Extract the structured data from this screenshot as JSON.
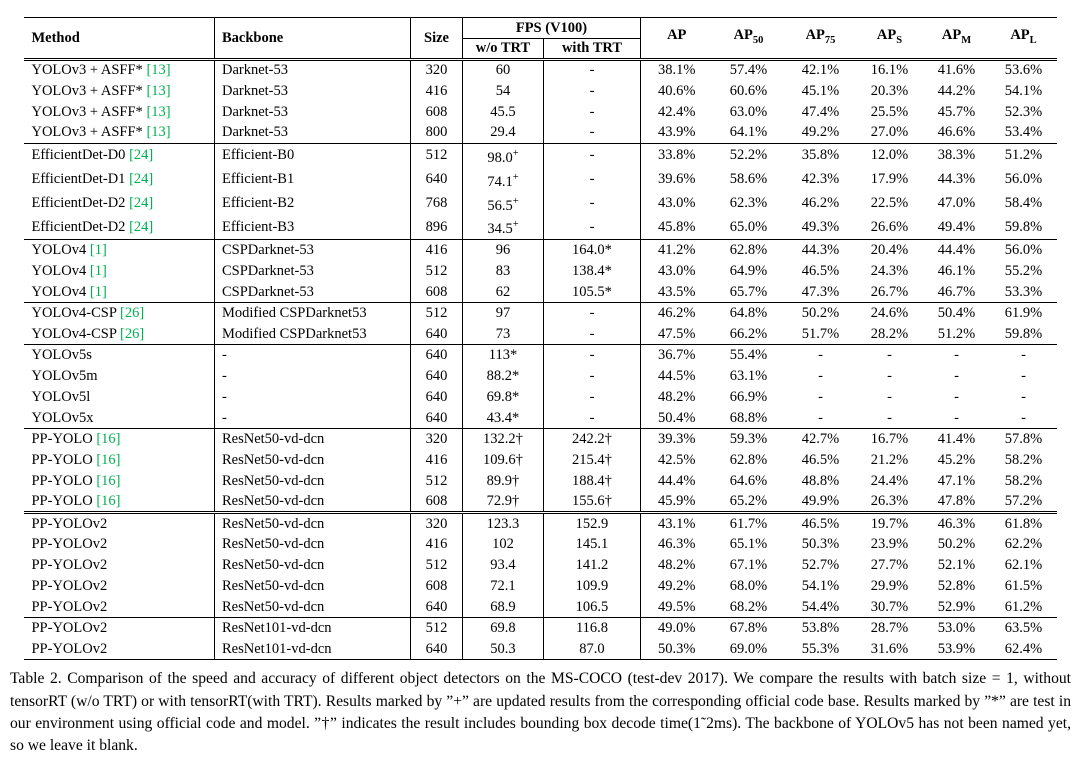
{
  "colors": {
    "cite_green": "#00b050",
    "text": "#000000",
    "rule": "#000000"
  },
  "table": {
    "header": {
      "method": "Method",
      "backbone": "Backbone",
      "size": "Size",
      "fps_group": "FPS (V100)",
      "fps_wo": "w/o TRT",
      "fps_with": "with TRT",
      "ap_columns": [
        {
          "main": "AP",
          "sub": ""
        },
        {
          "main": "AP",
          "sub": "50"
        },
        {
          "main": "AP",
          "sub": "75"
        },
        {
          "main": "AP",
          "sub": "S"
        },
        {
          "main": "AP",
          "sub": "M"
        },
        {
          "main": "AP",
          "sub": "L"
        }
      ]
    },
    "groups": [
      {
        "bottom_rule": "single",
        "rows": [
          {
            "method": "YOLOv3 + ASFF*",
            "cite": "[13]",
            "backbone": "Darknet-53",
            "size": "320",
            "fps_wo": "60",
            "fps_with": "-",
            "ap": [
              "38.1%",
              "57.4%",
              "42.1%",
              "16.1%",
              "41.6%",
              "53.6%"
            ]
          },
          {
            "method": "YOLOv3 + ASFF*",
            "cite": "[13]",
            "backbone": "Darknet-53",
            "size": "416",
            "fps_wo": "54",
            "fps_with": "-",
            "ap": [
              "40.6%",
              "60.6%",
              "45.1%",
              "20.3%",
              "44.2%",
              "54.1%"
            ]
          },
          {
            "method": "YOLOv3 + ASFF*",
            "cite": "[13]",
            "backbone": "Darknet-53",
            "size": "608",
            "fps_wo": "45.5",
            "fps_with": "-",
            "ap": [
              "42.4%",
              "63.0%",
              "47.4%",
              "25.5%",
              "45.7%",
              "52.3%"
            ]
          },
          {
            "method": "YOLOv3 + ASFF*",
            "cite": "[13]",
            "backbone": "Darknet-53",
            "size": "800",
            "fps_wo": "29.4",
            "fps_with": "-",
            "ap": [
              "43.9%",
              "64.1%",
              "49.2%",
              "27.0%",
              "46.6%",
              "53.4%"
            ]
          }
        ]
      },
      {
        "bottom_rule": "single",
        "rows": [
          {
            "method": "EfficientDet-D0",
            "cite": "[24]",
            "backbone": "Efficient-B0",
            "size": "512",
            "fps_wo": "98.0",
            "fps_wo_sup": "+",
            "fps_with": "-",
            "ap": [
              "33.8%",
              "52.2%",
              "35.8%",
              "12.0%",
              "38.3%",
              "51.2%"
            ]
          },
          {
            "method": "EfficientDet-D1",
            "cite": "[24]",
            "backbone": "Efficient-B1",
            "size": "640",
            "fps_wo": "74.1",
            "fps_wo_sup": "+",
            "fps_with": "-",
            "ap": [
              "39.6%",
              "58.6%",
              "42.3%",
              "17.9%",
              "44.3%",
              "56.0%"
            ]
          },
          {
            "method": "EfficientDet-D2",
            "cite": "[24]",
            "backbone": "Efficient-B2",
            "size": "768",
            "fps_wo": "56.5",
            "fps_wo_sup": "+",
            "fps_with": "-",
            "ap": [
              "43.0%",
              "62.3%",
              "46.2%",
              "22.5%",
              "47.0%",
              "58.4%"
            ]
          },
          {
            "method": "EfficientDet-D2",
            "cite": "[24]",
            "backbone": "Efficient-B3",
            "size": "896",
            "fps_wo": "34.5",
            "fps_wo_sup": "+",
            "fps_with": "-",
            "ap": [
              "45.8%",
              "65.0%",
              "49.3%",
              "26.6%",
              "49.4%",
              "59.8%"
            ]
          }
        ]
      },
      {
        "bottom_rule": "single",
        "rows": [
          {
            "method": "YOLOv4",
            "cite": "[1]",
            "backbone": "CSPDarknet-53",
            "size": "416",
            "fps_wo": "96",
            "fps_with": "164.0*",
            "ap": [
              "41.2%",
              "62.8%",
              "44.3%",
              "20.4%",
              "44.4%",
              "56.0%"
            ]
          },
          {
            "method": "YOLOv4",
            "cite": "[1]",
            "backbone": "CSPDarknet-53",
            "size": "512",
            "fps_wo": "83",
            "fps_with": "138.4*",
            "ap": [
              "43.0%",
              "64.9%",
              "46.5%",
              "24.3%",
              "46.1%",
              "55.2%"
            ]
          },
          {
            "method": "YOLOv4",
            "cite": "[1]",
            "backbone": "CSPDarknet-53",
            "size": "608",
            "fps_wo": "62",
            "fps_with": "105.5*",
            "ap": [
              "43.5%",
              "65.7%",
              "47.3%",
              "26.7%",
              "46.7%",
              "53.3%"
            ]
          }
        ]
      },
      {
        "bottom_rule": "single",
        "rows": [
          {
            "method": "YOLOv4-CSP",
            "cite": "[26]",
            "backbone": "Modified CSPDarknet53",
            "size": "512",
            "fps_wo": "97",
            "fps_with": "-",
            "ap": [
              "46.2%",
              "64.8%",
              "50.2%",
              "24.6%",
              "50.4%",
              "61.9%"
            ]
          },
          {
            "method": "YOLOv4-CSP",
            "cite": "[26]",
            "backbone": "Modified CSPDarknet53",
            "size": "640",
            "fps_wo": "73",
            "fps_with": "-",
            "ap": [
              "47.5%",
              "66.2%",
              "51.7%",
              "28.2%",
              "51.2%",
              "59.8%"
            ]
          }
        ]
      },
      {
        "bottom_rule": "single",
        "rows": [
          {
            "method": "YOLOv5s",
            "cite": "",
            "backbone": "-",
            "size": "640",
            "fps_wo": "113*",
            "fps_with": "-",
            "ap": [
              "36.7%",
              "55.4%",
              "-",
              "-",
              "-",
              "-"
            ]
          },
          {
            "method": "YOLOv5m",
            "cite": "",
            "backbone": "-",
            "size": "640",
            "fps_wo": "88.2*",
            "fps_with": "-",
            "ap": [
              "44.5%",
              "63.1%",
              "-",
              "-",
              "-",
              "-"
            ]
          },
          {
            "method": "YOLOv5l",
            "cite": "",
            "backbone": "-",
            "size": "640",
            "fps_wo": "69.8*",
            "fps_with": "-",
            "ap": [
              "48.2%",
              "66.9%",
              "-",
              "-",
              "-",
              "-"
            ]
          },
          {
            "method": "YOLOv5x",
            "cite": "",
            "backbone": "-",
            "size": "640",
            "fps_wo": "43.4*",
            "fps_with": "-",
            "ap": [
              "50.4%",
              "68.8%",
              "-",
              "-",
              "-",
              "-"
            ]
          }
        ]
      },
      {
        "bottom_rule": "double",
        "rows": [
          {
            "method": "PP-YOLO",
            "cite": "[16]",
            "backbone": "ResNet50-vd-dcn",
            "size": "320",
            "fps_wo": "132.2†",
            "fps_with": "242.2†",
            "ap": [
              "39.3%",
              "59.3%",
              "42.7%",
              "16.7%",
              "41.4%",
              "57.8%"
            ]
          },
          {
            "method": "PP-YOLO",
            "cite": "[16]",
            "backbone": "ResNet50-vd-dcn",
            "size": "416",
            "fps_wo": "109.6†",
            "fps_with": "215.4†",
            "ap": [
              "42.5%",
              "62.8%",
              "46.5%",
              "21.2%",
              "45.2%",
              "58.2%"
            ]
          },
          {
            "method": "PP-YOLO",
            "cite": "[16]",
            "backbone": "ResNet50-vd-dcn",
            "size": "512",
            "fps_wo": "89.9†",
            "fps_with": "188.4†",
            "ap": [
              "44.4%",
              "64.6%",
              "48.8%",
              "24.4%",
              "47.1%",
              "58.2%"
            ]
          },
          {
            "method": "PP-YOLO",
            "cite": "[16]",
            "backbone": "ResNet50-vd-dcn",
            "size": "608",
            "fps_wo": "72.9†",
            "fps_with": "155.6†",
            "ap": [
              "45.9%",
              "65.2%",
              "49.9%",
              "26.3%",
              "47.8%",
              "57.2%"
            ]
          }
        ]
      },
      {
        "bottom_rule": "single",
        "rows": [
          {
            "method": "PP-YOLOv2",
            "cite": "",
            "backbone": "ResNet50-vd-dcn",
            "size": "320",
            "fps_wo": "123.3",
            "fps_with": "152.9",
            "ap": [
              "43.1%",
              "61.7%",
              "46.5%",
              "19.7%",
              "46.3%",
              "61.8%"
            ]
          },
          {
            "method": "PP-YOLOv2",
            "cite": "",
            "backbone": "ResNet50-vd-dcn",
            "size": "416",
            "fps_wo": "102",
            "fps_with": "145.1",
            "ap": [
              "46.3%",
              "65.1%",
              "50.3%",
              "23.9%",
              "50.2%",
              "62.2%"
            ]
          },
          {
            "method": "PP-YOLOv2",
            "cite": "",
            "backbone": "ResNet50-vd-dcn",
            "size": "512",
            "fps_wo": "93.4",
            "fps_with": "141.2",
            "ap": [
              "48.2%",
              "67.1%",
              "52.7%",
              "27.7%",
              "52.1%",
              "62.1%"
            ]
          },
          {
            "method": "PP-YOLOv2",
            "cite": "",
            "backbone": "ResNet50-vd-dcn",
            "size": "608",
            "fps_wo": "72.1",
            "fps_with": "109.9",
            "ap": [
              "49.2%",
              "68.0%",
              "54.1%",
              "29.9%",
              "52.8%",
              "61.5%"
            ]
          },
          {
            "method": "PP-YOLOv2",
            "cite": "",
            "backbone": "ResNet50-vd-dcn",
            "size": "640",
            "fps_wo": "68.9",
            "fps_with": "106.5",
            "ap": [
              "49.5%",
              "68.2%",
              "54.4%",
              "30.7%",
              "52.9%",
              "61.2%"
            ]
          }
        ]
      },
      {
        "bottom_rule": "single",
        "rows": [
          {
            "method": "PP-YOLOv2",
            "cite": "",
            "backbone": "ResNet101-vd-dcn",
            "size": "512",
            "fps_wo": "69.8",
            "fps_with": "116.8",
            "ap": [
              "49.0%",
              "67.8%",
              "53.8%",
              "28.7%",
              "53.0%",
              "63.5%"
            ]
          },
          {
            "method": "PP-YOLOv2",
            "cite": "",
            "backbone": "ResNet101-vd-dcn",
            "size": "640",
            "fps_wo": "50.3",
            "fps_with": "87.0",
            "ap": [
              "50.3%",
              "69.0%",
              "55.3%",
              "31.6%",
              "53.9%",
              "62.4%"
            ]
          }
        ]
      }
    ],
    "caption": "Table 2. Comparison of the speed and accuracy of different object detectors on the MS-COCO (test-dev 2017). We compare the results with batch size = 1, without tensorRT (w/o TRT) or with tensorRT(with TRT). Results marked by ”+” are updated results from the corresponding official code base. Results marked by ”*” are test in our environment using official code and model. ”†” indicates the result includes bounding box decode time(1˜2ms). The backbone of YOLOv5 has not been named yet, so we leave it blank."
  }
}
